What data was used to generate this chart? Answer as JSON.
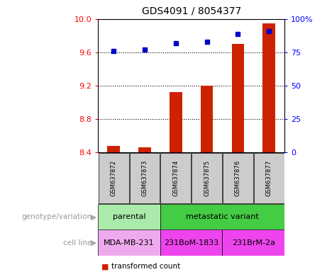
{
  "title": "GDS4091 / 8054377",
  "samples": [
    "GSM637872",
    "GSM637873",
    "GSM637874",
    "GSM637875",
    "GSM637876",
    "GSM637877"
  ],
  "bar_values": [
    8.48,
    8.46,
    9.12,
    9.2,
    9.7,
    9.95
  ],
  "dot_values": [
    76,
    77,
    82,
    83,
    89,
    91
  ],
  "bar_bottom": 8.4,
  "left_ylim": [
    8.4,
    10.0
  ],
  "right_ylim": [
    0,
    100
  ],
  "left_yticks": [
    8.4,
    8.8,
    9.2,
    9.6,
    10.0
  ],
  "right_yticks": [
    0,
    25,
    50,
    75,
    100
  ],
  "right_yticklabels": [
    "0",
    "25",
    "50",
    "75",
    "100%"
  ],
  "bar_color": "#cc2200",
  "dot_color": "#0000cc",
  "bg_color": "#ffffff",
  "plot_bg": "#ffffff",
  "genotype_groups": [
    {
      "label": "parental",
      "start": 0,
      "end": 2,
      "color": "#aaeaaa"
    },
    {
      "label": "metastatic variant",
      "start": 2,
      "end": 6,
      "color": "#44cc44"
    }
  ],
  "cell_line_groups": [
    {
      "label": "MDA-MB-231",
      "start": 0,
      "end": 2,
      "color": "#eeaaee"
    },
    {
      "label": "231BoM-1833",
      "start": 2,
      "end": 4,
      "color": "#ee44ee"
    },
    {
      "label": "231BrM-2a",
      "start": 4,
      "end": 6,
      "color": "#ee44ee"
    }
  ],
  "sample_box_color": "#cccccc",
  "label_color": "#999999",
  "arrow_color": "#aaaaaa"
}
